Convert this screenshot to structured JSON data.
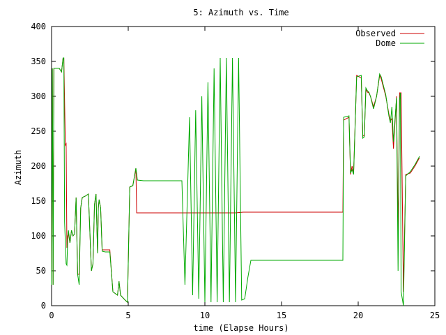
{
  "chart_data": {
    "type": "line",
    "title": "5: Azimuth vs. Time",
    "xlabel": "time (Elapse Hours)",
    "ylabel": "Azimuth",
    "xlim": [
      0,
      25
    ],
    "ylim": [
      0,
      400
    ],
    "xticks": [
      "0",
      "5",
      "10",
      "15",
      "20",
      "25"
    ],
    "yticks": [
      "0",
      "50",
      "100",
      "150",
      "200",
      "250",
      "300",
      "350",
      "400"
    ],
    "legend_position": "top-right",
    "grid": false,
    "series": [
      {
        "name": "Observed",
        "color": "#cc0000",
        "points": [
          [
            0,
            30
          ],
          [
            0.05,
            340
          ],
          [
            0.1,
            30
          ],
          [
            0.15,
            340
          ],
          [
            0.3,
            340
          ],
          [
            0.5,
            340
          ],
          [
            0.65,
            335
          ],
          [
            0.75,
            355
          ],
          [
            0.8,
            355
          ],
          [
            0.9,
            230
          ],
          [
            0.95,
            232
          ],
          [
            1.0,
            83
          ],
          [
            1.05,
            100
          ],
          [
            1.1,
            103
          ],
          [
            1.2,
            90
          ],
          [
            1.3,
            108
          ],
          [
            1.4,
            100
          ],
          [
            1.5,
            103
          ],
          [
            1.6,
            155
          ],
          [
            1.7,
            45
          ],
          [
            1.8,
            45
          ],
          [
            1.9,
            140
          ],
          [
            2.0,
            155
          ],
          [
            2.2,
            157
          ],
          [
            2.4,
            160
          ],
          [
            2.6,
            50
          ],
          [
            2.7,
            60
          ],
          [
            2.8,
            145
          ],
          [
            2.9,
            160
          ],
          [
            3.0,
            75
          ],
          [
            3.05,
            140
          ],
          [
            3.1,
            152
          ],
          [
            3.2,
            140
          ],
          [
            3.3,
            80
          ],
          [
            3.5,
            80
          ],
          [
            3.8,
            80
          ],
          [
            4.0,
            20
          ],
          [
            4.3,
            15
          ],
          [
            4.4,
            35
          ],
          [
            4.5,
            15
          ],
          [
            4.8,
            8
          ],
          [
            4.95,
            5
          ],
          [
            5.1,
            170
          ],
          [
            5.3,
            172
          ],
          [
            5.5,
            197
          ],
          [
            5.55,
            133
          ],
          [
            6.0,
            133
          ],
          [
            10,
            133
          ],
          [
            12.0,
            133
          ],
          [
            12.5,
            134
          ],
          [
            13,
            134
          ],
          [
            15,
            134
          ],
          [
            18,
            134
          ],
          [
            19,
            134
          ],
          [
            19.05,
            266
          ],
          [
            19.4,
            270
          ],
          [
            19.5,
            188
          ],
          [
            19.6,
            200
          ],
          [
            19.7,
            190
          ],
          [
            19.9,
            330
          ],
          [
            20.2,
            326
          ],
          [
            20.3,
            243
          ],
          [
            20.4,
            244
          ],
          [
            20.5,
            310
          ],
          [
            20.6,
            306
          ],
          [
            20.7,
            305
          ],
          [
            20.8,
            300
          ],
          [
            21.0,
            285
          ],
          [
            21.2,
            300
          ],
          [
            21.4,
            330
          ],
          [
            21.5,
            325
          ],
          [
            21.8,
            300
          ],
          [
            22.0,
            275
          ],
          [
            22.1,
            265
          ],
          [
            22.2,
            268
          ],
          [
            22.3,
            225
          ],
          [
            22.5,
            300
          ],
          [
            22.6,
            100
          ],
          [
            22.7,
            305
          ],
          [
            22.8,
            305
          ],
          [
            22.95,
            20
          ],
          [
            23.1,
            188
          ],
          [
            23.4,
            190
          ],
          [
            23.7,
            200
          ],
          [
            24.0,
            212
          ]
        ]
      },
      {
        "name": "Dome",
        "color": "#00aa00",
        "points": [
          [
            0,
            30
          ],
          [
            0.05,
            340
          ],
          [
            0.1,
            30
          ],
          [
            0.15,
            340
          ],
          [
            0.3,
            340
          ],
          [
            0.5,
            340
          ],
          [
            0.65,
            335
          ],
          [
            0.75,
            355
          ],
          [
            0.8,
            355
          ],
          [
            0.85,
            120
          ],
          [
            0.95,
            60
          ],
          [
            1.0,
            58
          ],
          [
            1.05,
            95
          ],
          [
            1.1,
            108
          ],
          [
            1.2,
            90
          ],
          [
            1.3,
            108
          ],
          [
            1.4,
            100
          ],
          [
            1.5,
            103
          ],
          [
            1.6,
            155
          ],
          [
            1.7,
            45
          ],
          [
            1.8,
            30
          ],
          [
            1.9,
            140
          ],
          [
            2.0,
            155
          ],
          [
            2.2,
            157
          ],
          [
            2.4,
            160
          ],
          [
            2.6,
            50
          ],
          [
            2.7,
            60
          ],
          [
            2.8,
            145
          ],
          [
            2.9,
            160
          ],
          [
            3.0,
            75
          ],
          [
            3.05,
            140
          ],
          [
            3.1,
            152
          ],
          [
            3.2,
            140
          ],
          [
            3.3,
            78
          ],
          [
            3.5,
            77
          ],
          [
            3.8,
            77
          ],
          [
            4.0,
            20
          ],
          [
            4.3,
            15
          ],
          [
            4.4,
            35
          ],
          [
            4.5,
            15
          ],
          [
            4.8,
            8
          ],
          [
            4.95,
            5
          ],
          [
            5.1,
            170
          ],
          [
            5.3,
            172
          ],
          [
            5.5,
            197
          ],
          [
            5.6,
            180
          ],
          [
            6.0,
            179
          ],
          [
            8.5,
            179
          ],
          [
            8.7,
            30
          ],
          [
            9.0,
            270
          ],
          [
            9.2,
            15
          ],
          [
            9.4,
            280
          ],
          [
            9.6,
            10
          ],
          [
            9.8,
            300
          ],
          [
            10.0,
            5
          ],
          [
            10.2,
            320
          ],
          [
            10.4,
            5
          ],
          [
            10.6,
            340
          ],
          [
            10.8,
            5
          ],
          [
            11.0,
            355
          ],
          [
            11.2,
            5
          ],
          [
            11.4,
            355
          ],
          [
            11.6,
            5
          ],
          [
            11.8,
            355
          ],
          [
            12.0,
            5
          ],
          [
            12.2,
            355
          ],
          [
            12.4,
            8
          ],
          [
            12.6,
            10
          ],
          [
            12.8,
            40
          ],
          [
            13.0,
            65
          ],
          [
            15,
            65
          ],
          [
            18,
            65
          ],
          [
            19,
            65
          ],
          [
            19.05,
            270
          ],
          [
            19.4,
            272
          ],
          [
            19.5,
            190
          ],
          [
            19.6,
            195
          ],
          [
            19.7,
            188
          ],
          [
            19.9,
            328
          ],
          [
            20.2,
            330
          ],
          [
            20.3,
            240
          ],
          [
            20.4,
            242
          ],
          [
            20.5,
            312
          ],
          [
            20.6,
            308
          ],
          [
            20.7,
            306
          ],
          [
            20.8,
            300
          ],
          [
            21.0,
            282
          ],
          [
            21.2,
            300
          ],
          [
            21.4,
            332
          ],
          [
            21.5,
            328
          ],
          [
            21.8,
            302
          ],
          [
            22.0,
            272
          ],
          [
            22.1,
            262
          ],
          [
            22.2,
            285
          ],
          [
            22.3,
            235
          ],
          [
            22.5,
            298
          ],
          [
            22.6,
            50
          ],
          [
            22.7,
            295
          ],
          [
            22.75,
            305
          ],
          [
            22.8,
            20
          ],
          [
            22.95,
            0
          ],
          [
            23.1,
            186
          ],
          [
            23.4,
            192
          ],
          [
            23.7,
            202
          ],
          [
            24.0,
            214
          ]
        ]
      }
    ]
  }
}
